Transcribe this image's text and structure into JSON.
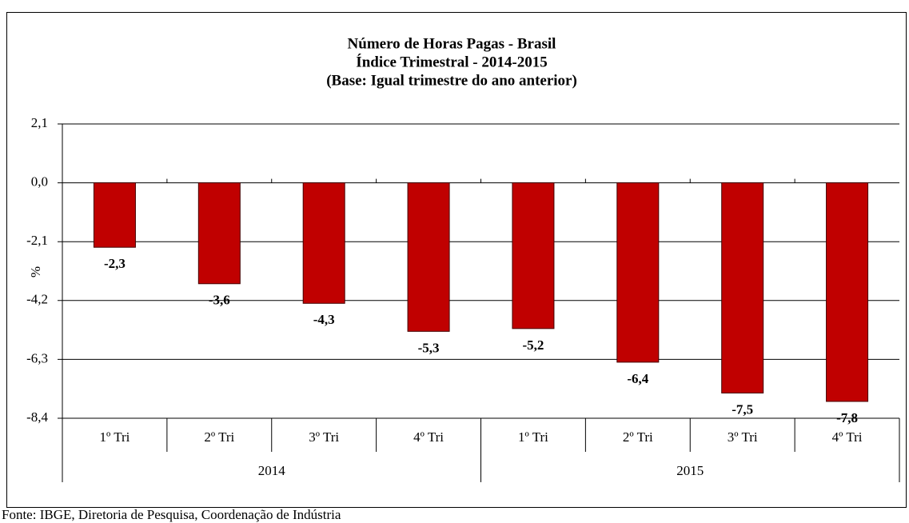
{
  "chart_data": {
    "type": "bar",
    "title": [
      "Número de Horas Pagas - Brasil",
      "Índice Trimestral - 2014-2015",
      "(Base: Igual trimestre do ano anterior)"
    ],
    "ylabel": "%",
    "categories": [
      "1º Tri",
      "2º Tri",
      "3º Tri",
      "4º Tri",
      "1º Tri",
      "2º Tri",
      "3º Tri",
      "4º Tri"
    ],
    "groups": [
      "2014",
      "2015"
    ],
    "values": [
      -2.3,
      -3.6,
      -4.3,
      -5.3,
      -5.2,
      -6.4,
      -7.5,
      -7.8
    ],
    "value_labels": [
      "-2,3",
      "-3,6",
      "-4,3",
      "-5,3",
      "-5,2",
      "-6,4",
      "-7,5",
      "-7,8"
    ],
    "color": "#c00000",
    "ylim": [
      -8.4,
      2.1
    ],
    "yticks": [
      {
        "value": 2.1,
        "label": "2,1"
      },
      {
        "value": 0,
        "label": "0,0"
      },
      {
        "value": -2.1,
        "label": "-2,1"
      },
      {
        "value": -4.2,
        "label": "-4,2"
      },
      {
        "value": -6.3,
        "label": "-6,3"
      },
      {
        "value": -8.4,
        "label": "-8,4"
      }
    ],
    "grid": true,
    "source": "Fonte: IBGE, Diretoria de Pesquisa, Coordenação de Indústria"
  }
}
